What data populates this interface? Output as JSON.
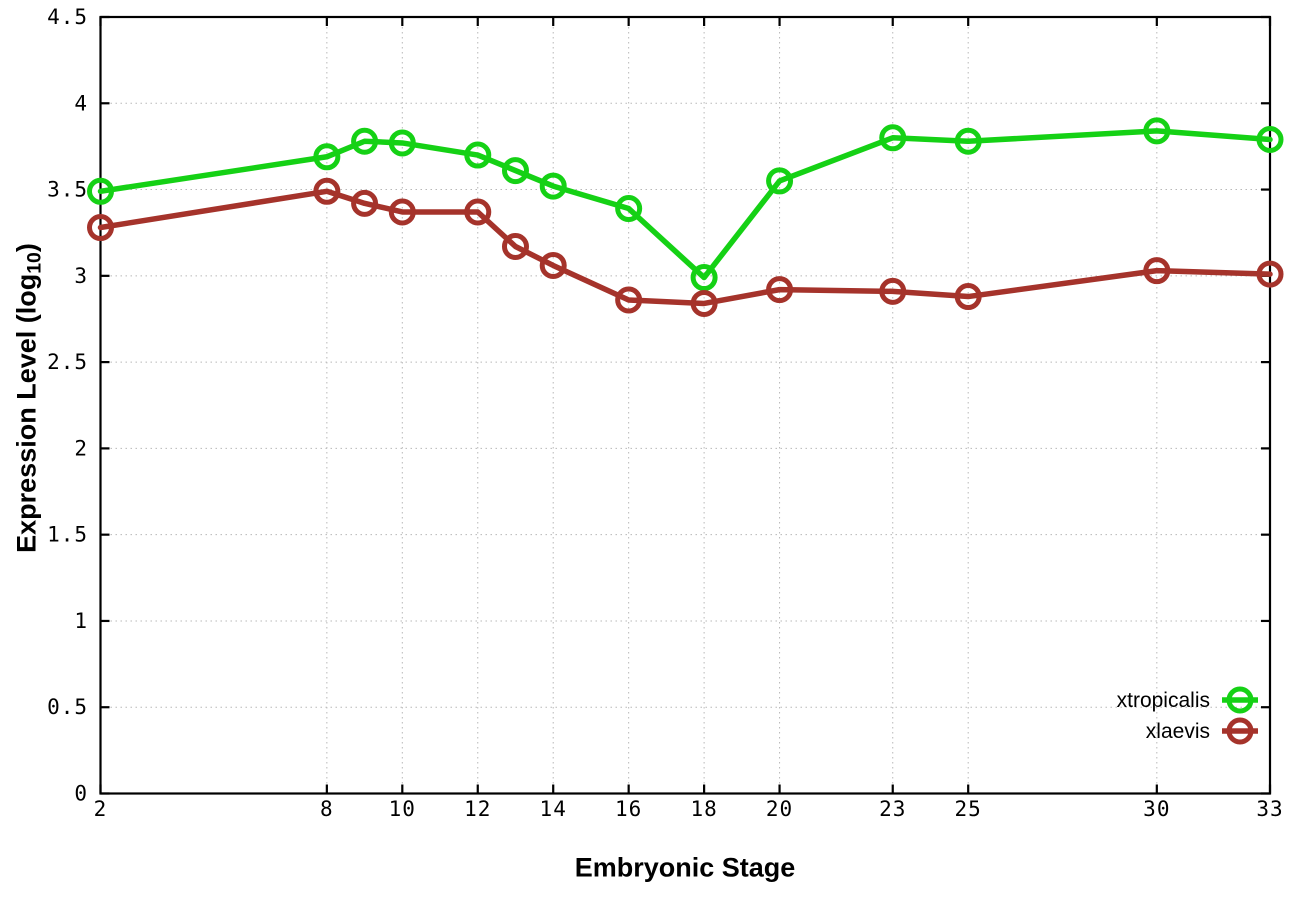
{
  "figure": {
    "background": "#ffffff",
    "border_color": "#000000",
    "grid_color": "#b8b8b8"
  },
  "chart_data": {
    "type": "line",
    "title": "",
    "xlabel": "Embryonic Stage",
    "ylabel": "Expression Level (log10)",
    "ylabel_parts": {
      "prefix": "Expression Level (log",
      "sub": "10",
      "suffix": ")"
    },
    "xlim": [
      2,
      33
    ],
    "ylim": [
      0,
      4.5
    ],
    "grid": true,
    "legend_position": "bottom-right",
    "x": [
      2,
      8,
      9,
      10,
      12,
      13,
      14,
      16,
      18,
      20,
      23,
      25,
      30,
      33
    ],
    "x_ticks": [
      2,
      8,
      10,
      12,
      14,
      16,
      18,
      20,
      23,
      25,
      30,
      33
    ],
    "x_tick_labels": [
      "2",
      "8",
      "10",
      "12",
      "14",
      "16",
      "18",
      "20",
      "23",
      "25",
      "30",
      "33"
    ],
    "y_ticks": [
      0,
      0.5,
      1,
      1.5,
      2,
      2.5,
      3,
      3.5,
      4,
      4.5
    ],
    "y_tick_labels": [
      "0",
      "0.5",
      "1",
      "1.5",
      "2",
      "2.5",
      "3",
      "3.5",
      "4",
      "4.5"
    ],
    "series": [
      {
        "name": "xtropicalis",
        "color": "#15d115",
        "marker": "open-circle",
        "values": [
          3.49,
          3.69,
          3.78,
          3.77,
          3.7,
          3.61,
          3.52,
          3.39,
          2.99,
          3.55,
          3.8,
          3.78,
          3.84,
          3.79
        ]
      },
      {
        "name": "xlaevis",
        "color": "#a5332b",
        "marker": "open-circle",
        "values": [
          3.28,
          3.49,
          3.42,
          3.37,
          3.37,
          3.17,
          3.06,
          2.86,
          2.84,
          2.92,
          2.91,
          2.88,
          3.03,
          3.01
        ]
      }
    ]
  }
}
